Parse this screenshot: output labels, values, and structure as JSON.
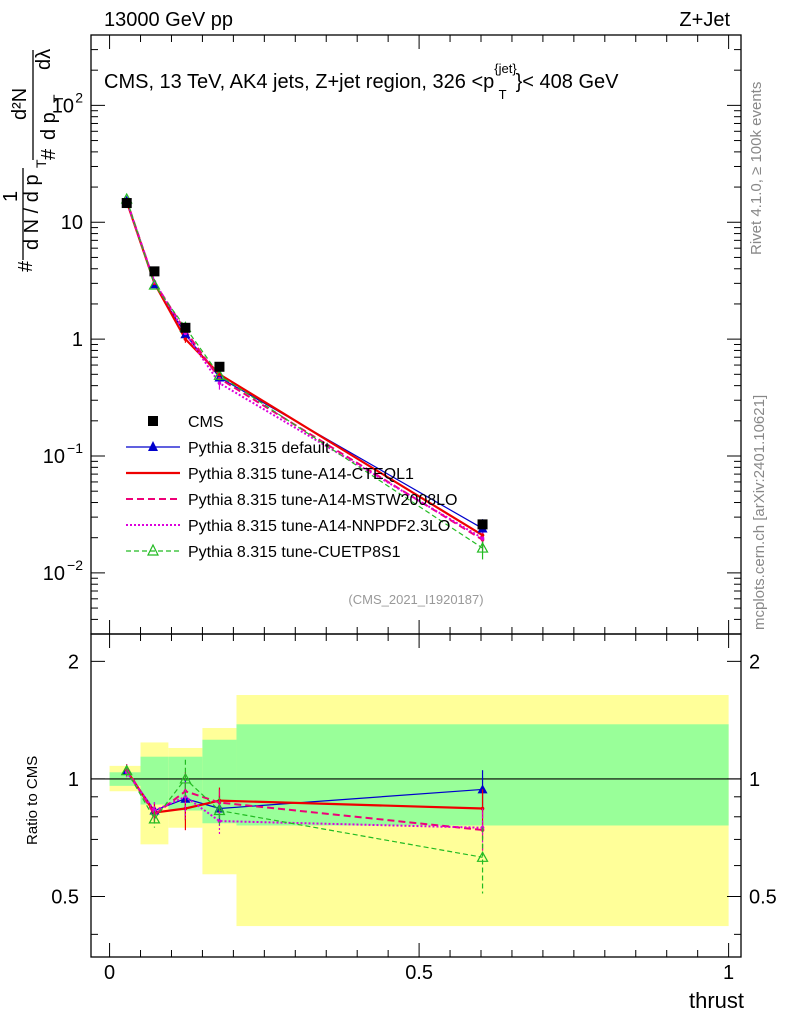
{
  "header": {
    "left": "13000 GeV pp",
    "right": "Z+Jet"
  },
  "side_text": {
    "rivet": "Rivet 4.1.0, ≥ 100k events",
    "mcplots": "mcplots.cern.ch [arXiv:2401.10621]"
  },
  "colors": {
    "cms": "#000000",
    "default": "#0000cc",
    "cteql1": "#ee0000",
    "mstw": "#ee0077",
    "nnpdf": "#dd00dd",
    "cuetp8s1": "#22bb22",
    "band_outer": "#ffff99",
    "band_inner": "#99ff99"
  },
  "chart_data": [
    {
      "type": "line",
      "panel": "main",
      "title": "CMS, 13 TeV, AK4 jets, Z+jet region, 326 <p_T^{jet}< 408 GeV",
      "title_parts": [
        "CMS, 13 TeV, AK4 jets, Z+jet region, 326 <p",
        "{jet}",
        "T",
        "}< 408 GeV"
      ],
      "ylabel": "1/dN/dp_T d^2N/dp_T dlambda",
      "ylabel_parts": [
        "#",
        "d N / d p",
        "T",
        "1",
        "#",
        "d p",
        "T",
        "d²N",
        "dλ"
      ],
      "xlabel": "thrust",
      "yscale": "log",
      "xlim": [
        -0.03,
        1.02
      ],
      "ylim": [
        0.003,
        400
      ],
      "ytick_labels": [
        "10",
        "10",
        "1",
        "10",
        "10"
      ],
      "ytick_exponents": [
        "2",
        "",
        "",
        "−1",
        "−2"
      ],
      "watermark": "(CMS_2021_I1920187)",
      "x": [
        0.0277,
        0.0725,
        0.1225,
        0.1775,
        0.6025
      ],
      "series": [
        {
          "name": "CMS",
          "values": [
            14.6,
            3.8,
            1.25,
            0.58,
            0.026
          ],
          "style": "cms"
        },
        {
          "name": "Pythia 8.315 default",
          "values": [
            15.3,
            2.95,
            1.1,
            0.47,
            0.024
          ],
          "style": "default"
        },
        {
          "name": "Pythia 8.315 tune-A14-CTEQL1",
          "values": [
            15.0,
            3.0,
            1.0,
            0.5,
            0.021
          ],
          "style": "cteql1"
        },
        {
          "name": "Pythia 8.315 tune-A14-MSTW2008LO",
          "values": [
            15.4,
            3.05,
            1.18,
            0.46,
            0.0192
          ],
          "style": "mstw"
        },
        {
          "name": "Pythia 8.315 tune-A14-NNPDF2.3LO",
          "values": [
            15.1,
            3.1,
            1.12,
            0.42,
            0.0198
          ],
          "style": "nnpdf"
        },
        {
          "name": "Pythia 8.315 tune-CUETP8S1",
          "values": [
            15.8,
            2.9,
            1.26,
            0.49,
            0.0163
          ],
          "style": "cuetp8s1"
        }
      ]
    },
    {
      "type": "line",
      "panel": "ratio",
      "ylabel": "Ratio to CMS",
      "xlabel": "thrust",
      "xlim": [
        -0.03,
        1.02
      ],
      "ylim": [
        0.35,
        2.35
      ],
      "yticks": [
        0.5,
        1,
        2
      ],
      "ytick_labels": [
        "0.5",
        "1",
        "2"
      ],
      "xticks": [
        0,
        0.5,
        1
      ],
      "xtick_labels": [
        "0",
        "0.5",
        "1"
      ],
      "x": [
        0.0277,
        0.0725,
        0.1225,
        0.1775,
        0.6025
      ],
      "bins": [
        [
          0.0,
          0.05
        ],
        [
          0.05,
          0.095
        ],
        [
          0.095,
          0.15
        ],
        [
          0.15,
          0.205
        ],
        [
          0.205,
          1.0
        ]
      ],
      "band_outer": [
        [
          0.93,
          1.08
        ],
        [
          0.68,
          1.24
        ],
        [
          0.75,
          1.2
        ],
        [
          0.57,
          1.35
        ],
        [
          0.42,
          1.64
        ]
      ],
      "band_inner": [
        [
          0.96,
          1.04
        ],
        [
          0.86,
          1.14
        ],
        [
          0.83,
          1.14
        ],
        [
          0.77,
          1.26
        ],
        [
          0.76,
          1.38
        ]
      ],
      "series": [
        {
          "name": "Pythia 8.315 default",
          "values": [
            1.05,
            0.83,
            0.89,
            0.84,
            0.94
          ],
          "style": "default"
        },
        {
          "name": "Pythia 8.315 tune-A14-CTEQL1",
          "values": [
            1.05,
            0.82,
            0.84,
            0.88,
            0.84
          ],
          "style": "cteql1"
        },
        {
          "name": "Pythia 8.315 tune-A14-MSTW2008LO",
          "values": [
            1.06,
            0.81,
            0.93,
            0.87,
            0.74
          ],
          "style": "mstw"
        },
        {
          "name": "Pythia 8.315 tune-A14-NNPDF2.3LO",
          "values": [
            1.04,
            0.83,
            0.9,
            0.78,
            0.75
          ],
          "style": "nnpdf"
        },
        {
          "name": "Pythia 8.315 tune-CUETP8S1",
          "values": [
            1.05,
            0.79,
            1.0,
            0.83,
            0.63
          ],
          "style": "cuetp8s1"
        }
      ]
    }
  ]
}
